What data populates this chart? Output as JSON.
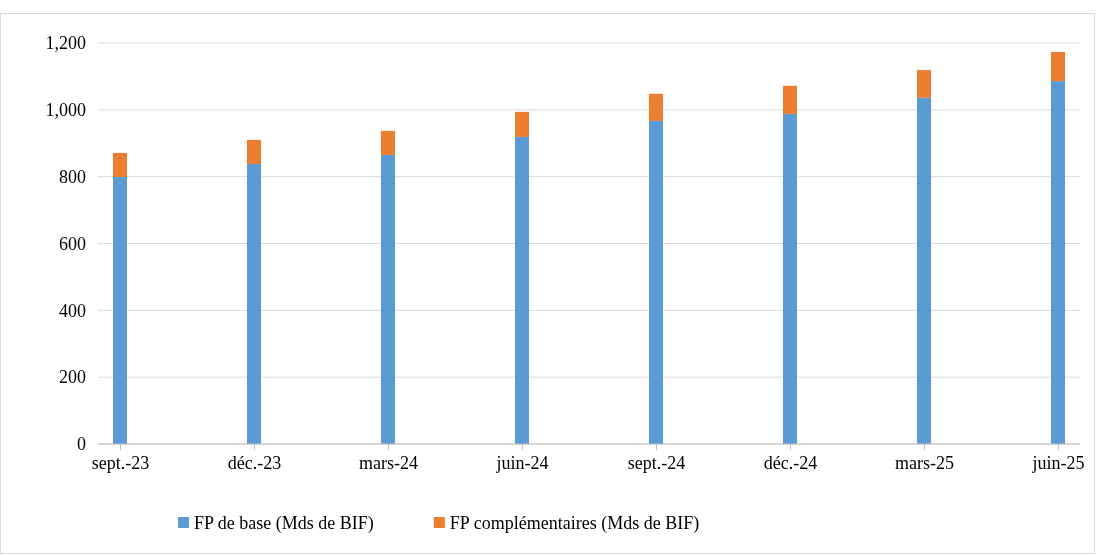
{
  "chart_data": {
    "type": "bar",
    "stacked": true,
    "categories": [
      "sept.-23",
      "déc.-23",
      "mars-24",
      "juin-24",
      "sept.-24",
      "déc.-24",
      "mars-25",
      "juin-25"
    ],
    "series": [
      {
        "name": "FP de base (Mds de BIF)",
        "color": "#5b9bd5",
        "values": [
          799,
          838,
          865,
          919,
          967,
          988,
          1036,
          1086
        ]
      },
      {
        "name": "FP complémentaires (Mds de BIF)",
        "color": "#ed7d31",
        "values": [
          72,
          72,
          72,
          75,
          81,
          84,
          83,
          87
        ]
      }
    ],
    "ylim": [
      0,
      1200
    ],
    "yticks": [
      0,
      {
        "value": 200,
        "label": "200"
      },
      {
        "value": 400,
        "label": "400"
      },
      {
        "value": 600,
        "label": "600"
      },
      {
        "value": 800,
        "label": "800"
      },
      {
        "value": 1000,
        "label": "1,000"
      },
      {
        "value": 1200,
        "label": "1,200"
      }
    ],
    "grid": "y",
    "legend": "bottom"
  }
}
